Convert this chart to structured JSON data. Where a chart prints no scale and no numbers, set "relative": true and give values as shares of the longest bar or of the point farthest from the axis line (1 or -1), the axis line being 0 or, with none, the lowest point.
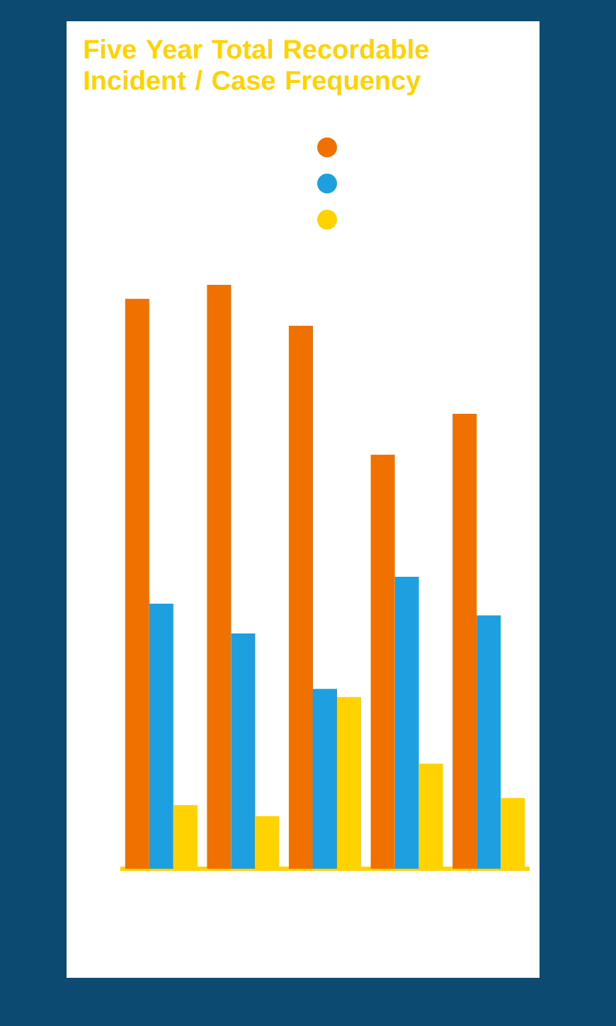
{
  "chart_data": {
    "type": "bar",
    "title": "Five Year Total Recordable Incident / Case Frequency",
    "relative": true,
    "categories": [
      null,
      null,
      null,
      null,
      null
    ],
    "series": [
      {
        "color": "#f07000",
        "values": [
          0.976,
          1,
          0.93,
          0.709,
          0.779
        ]
      },
      {
        "color": "#1ea0e0",
        "values": [
          0.454,
          0.403,
          0.308,
          0.5,
          0.434
        ]
      },
      {
        "color": "#ffd200",
        "values": [
          0.109,
          0.09,
          0.294,
          0.18,
          0.121
        ]
      }
    ]
  }
}
